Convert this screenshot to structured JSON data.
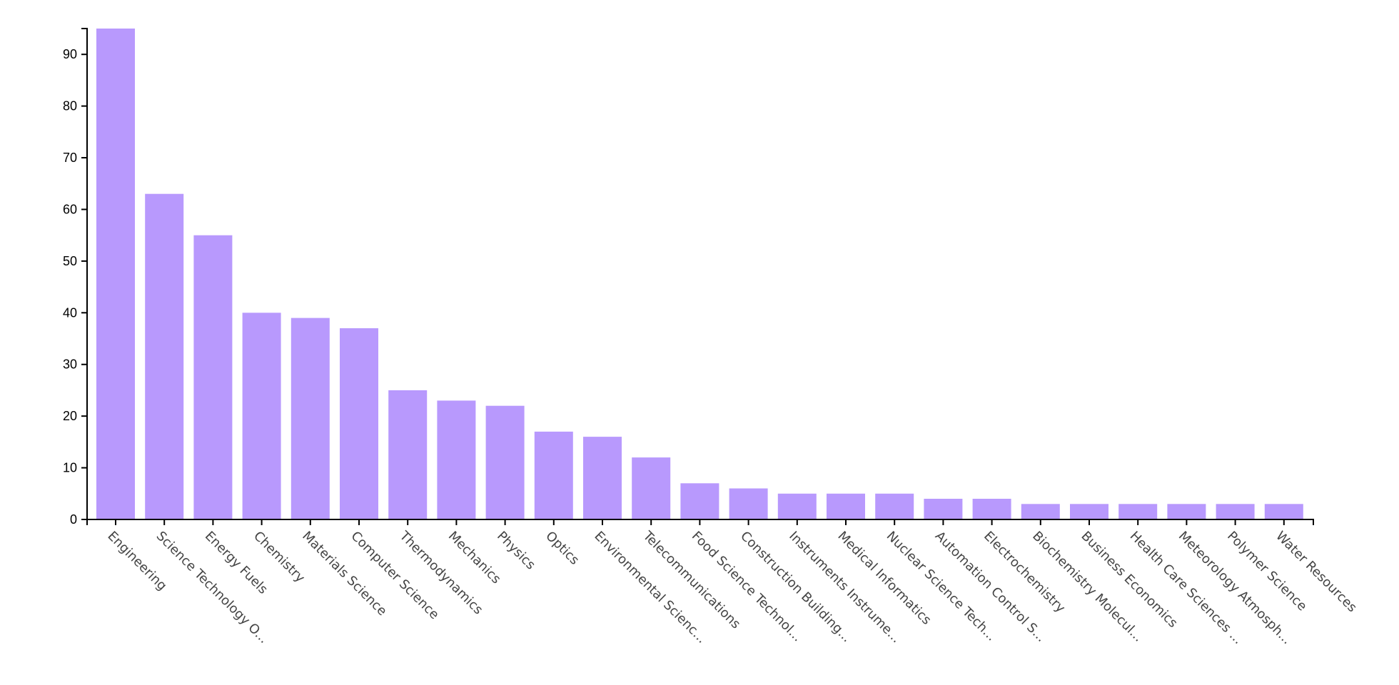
{
  "chart_data": {
    "type": "bar",
    "categories": [
      "Engineering",
      "Science Technology O...",
      "Energy Fuels",
      "Chemistry",
      "Materials Science",
      "Computer Science",
      "Thermodynamics",
      "Mechanics",
      "Physics",
      "Optics",
      "Environmental Scienc...",
      "Telecommunications",
      "Food Science Technol...",
      "Construction Building...",
      "Instruments Instrume...",
      "Medical Informatics",
      "Nuclear Science Tech...",
      "Automation Control S...",
      "Electrochemistry",
      "Biochemistry Molecul...",
      "Business Economics",
      "Health Care Sciences ...",
      "Meteorology Atmosph...",
      "Polymer Science",
      "Water Resources"
    ],
    "values": [
      95,
      63,
      55,
      40,
      39,
      37,
      25,
      23,
      22,
      17,
      16,
      12,
      7,
      6,
      5,
      5,
      5,
      4,
      4,
      3,
      3,
      3,
      3,
      3,
      3
    ],
    "ylim": [
      0,
      95
    ],
    "yticks": [
      0,
      10,
      20,
      30,
      40,
      50,
      60,
      70,
      80,
      90
    ],
    "bar_color": "#b899fd",
    "grid": false,
    "title": "",
    "xlabel": "",
    "ylabel": ""
  }
}
